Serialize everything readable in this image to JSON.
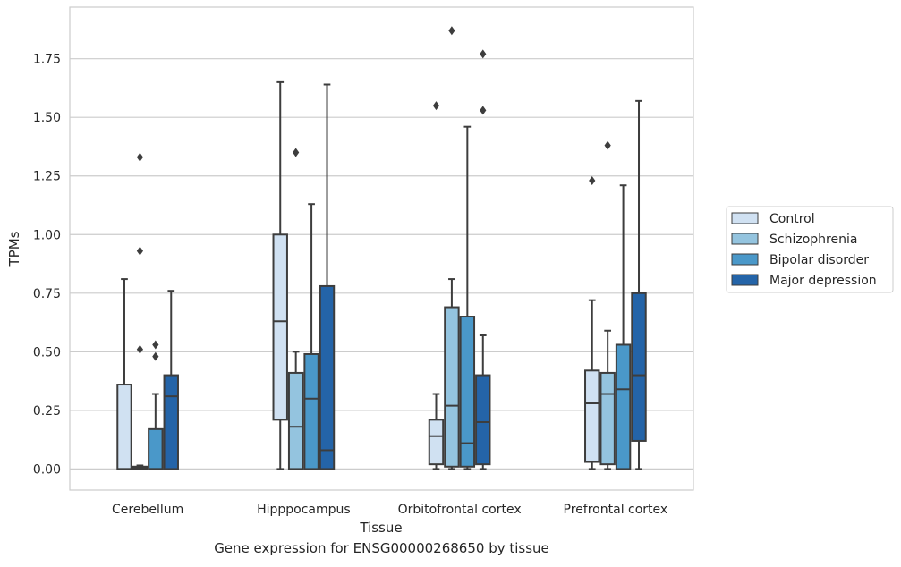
{
  "caption": "Gene expression for ENSG00000268650 by tissue",
  "chart_data": {
    "type": "boxplot",
    "title": "",
    "xlabel": "Tissue",
    "ylabel": "TPMs",
    "ylim": [
      -0.09,
      1.97
    ],
    "yticks": [
      "0.00",
      "0.25",
      "0.50",
      "0.75",
      "1.00",
      "1.25",
      "1.50",
      "1.75"
    ],
    "grid": "horizontal",
    "legend_position": "right",
    "categories": [
      "Cerebellum",
      "Hipppocampus",
      "Orbitofrontal cortex",
      "Prefrontal cortex"
    ],
    "series": [
      {
        "name": "Control",
        "color": "#d0e1f2",
        "boxes": [
          {
            "q1": 0.0,
            "median": 0.0,
            "q3": 0.36,
            "whisker_low": 0.0,
            "whisker_high": 0.81,
            "outliers": []
          },
          {
            "q1": 0.21,
            "median": 0.63,
            "q3": 1.0,
            "whisker_low": 0.0,
            "whisker_high": 1.65,
            "outliers": []
          },
          {
            "q1": 0.02,
            "median": 0.14,
            "q3": 0.21,
            "whisker_low": 0.0,
            "whisker_high": 0.32,
            "outliers": [
              1.55
            ]
          },
          {
            "q1": 0.03,
            "median": 0.28,
            "q3": 0.42,
            "whisker_low": 0.0,
            "whisker_high": 0.72,
            "outliers": [
              1.23
            ]
          }
        ]
      },
      {
        "name": "Schizophrenia",
        "color": "#94c4df",
        "boxes": [
          {
            "q1": 0.0,
            "median": 0.005,
            "q3": 0.01,
            "whisker_low": 0.0,
            "whisker_high": 0.015,
            "outliers": [
              0.51,
              0.93,
              1.33
            ]
          },
          {
            "q1": 0.0,
            "median": 0.18,
            "q3": 0.41,
            "whisker_low": 0.0,
            "whisker_high": 0.5,
            "outliers": [
              1.35
            ]
          },
          {
            "q1": 0.01,
            "median": 0.27,
            "q3": 0.69,
            "whisker_low": 0.0,
            "whisker_high": 0.81,
            "outliers": [
              1.87
            ]
          },
          {
            "q1": 0.02,
            "median": 0.32,
            "q3": 0.41,
            "whisker_low": 0.0,
            "whisker_high": 0.59,
            "outliers": [
              1.38
            ]
          }
        ]
      },
      {
        "name": "Bipolar disorder",
        "color": "#4a98c9",
        "boxes": [
          {
            "q1": 0.0,
            "median": 0.0,
            "q3": 0.17,
            "whisker_low": 0.0,
            "whisker_high": 0.32,
            "outliers": [
              0.48,
              0.53
            ]
          },
          {
            "q1": 0.0,
            "median": 0.3,
            "q3": 0.49,
            "whisker_low": 0.0,
            "whisker_high": 1.13,
            "outliers": []
          },
          {
            "q1": 0.01,
            "median": 0.11,
            "q3": 0.65,
            "whisker_low": 0.0,
            "whisker_high": 1.46,
            "outliers": []
          },
          {
            "q1": 0.0,
            "median": 0.34,
            "q3": 0.53,
            "whisker_low": 0.0,
            "whisker_high": 1.21,
            "outliers": []
          }
        ]
      },
      {
        "name": "Major depression",
        "color": "#2464a8",
        "boxes": [
          {
            "q1": 0.0,
            "median": 0.31,
            "q3": 0.4,
            "whisker_low": 0.0,
            "whisker_high": 0.76,
            "outliers": []
          },
          {
            "q1": 0.0,
            "median": 0.08,
            "q3": 0.78,
            "whisker_low": 0.0,
            "whisker_high": 1.64,
            "outliers": []
          },
          {
            "q1": 0.02,
            "median": 0.2,
            "q3": 0.4,
            "whisker_low": 0.0,
            "whisker_high": 0.57,
            "outliers": [
              1.53,
              1.77
            ]
          },
          {
            "q1": 0.12,
            "median": 0.4,
            "q3": 0.75,
            "whisker_low": 0.0,
            "whisker_high": 1.57,
            "outliers": []
          }
        ]
      }
    ]
  }
}
